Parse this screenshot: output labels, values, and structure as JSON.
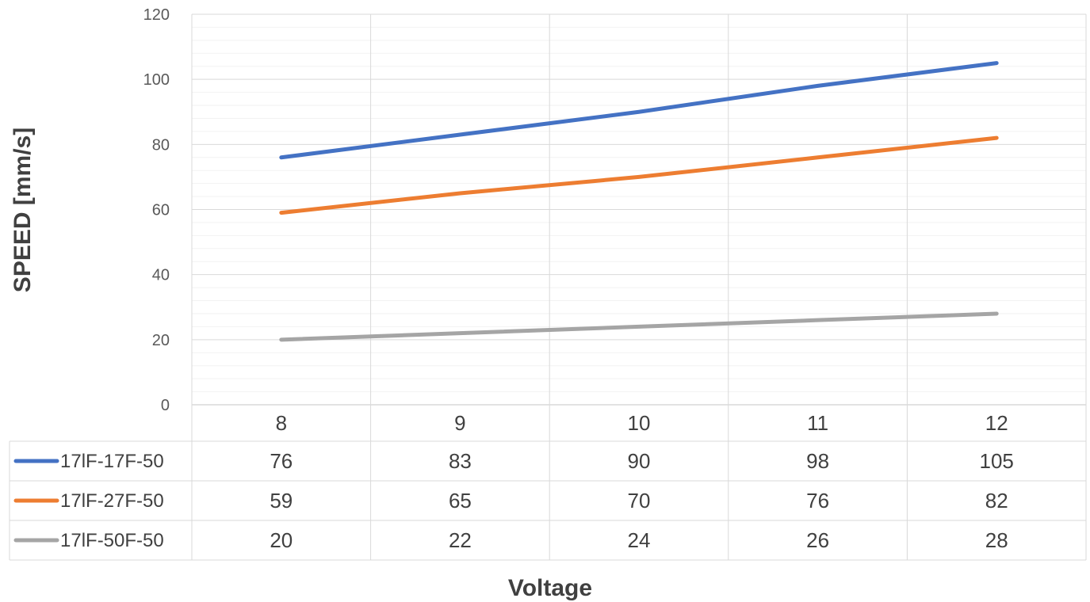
{
  "chart_data": {
    "type": "line",
    "categories": [
      "8",
      "9",
      "10",
      "11",
      "12"
    ],
    "xlabel": "Voltage",
    "ylabel": "SPEED [mm/s]",
    "ylim": [
      0,
      120
    ],
    "y_ticks": [
      "0",
      "20",
      "40",
      "60",
      "80",
      "100",
      "120"
    ],
    "grid": true,
    "legend_placement": "data-table-below",
    "series": [
      {
        "name": "17lF-17F-50",
        "color": "#4472C4",
        "values": [
          76,
          83,
          90,
          98,
          105
        ]
      },
      {
        "name": "17lF-27F-50",
        "color": "#ED7D31",
        "values": [
          59,
          65,
          70,
          76,
          82
        ]
      },
      {
        "name": "17lF-50F-50",
        "color": "#A5A5A5",
        "values": [
          20,
          22,
          24,
          26,
          28
        ]
      }
    ]
  }
}
